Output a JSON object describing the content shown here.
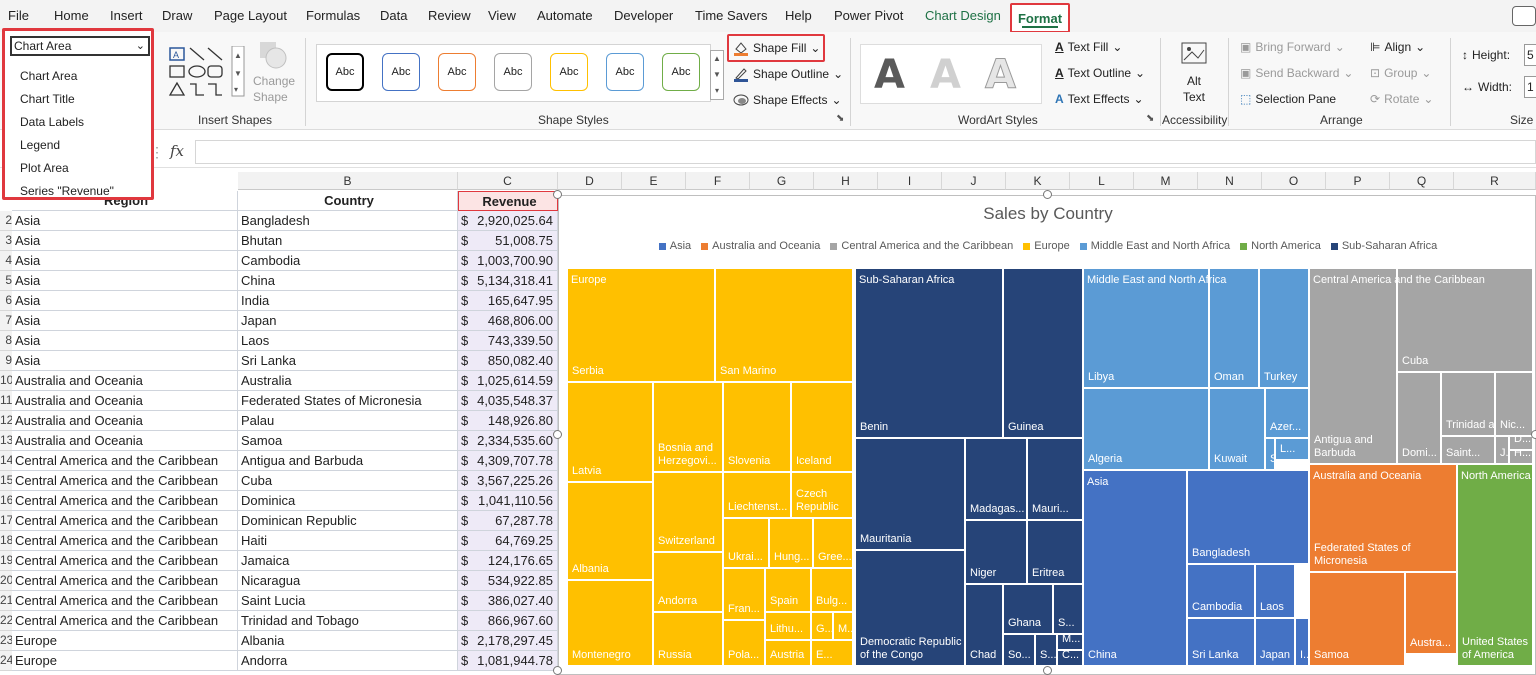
{
  "menu": {
    "tabs": [
      "File",
      "Home",
      "Insert",
      "Draw",
      "Page Layout",
      "Formulas",
      "Data",
      "Review",
      "View",
      "Automate",
      "Developer",
      "Time Savers",
      "Help",
      "Power Pivot",
      "Chart Design"
    ],
    "active_tab": "Format"
  },
  "ribbon": {
    "selection": {
      "current": "Chart Area",
      "options": [
        "Chart Area",
        "Chart Title",
        "Data Labels",
        "Legend",
        "Plot Area",
        "Series \"Revenue\""
      ]
    },
    "insert_shapes": {
      "change_shape": "Change",
      "change_shape2": "Shape",
      "label": "Insert Shapes"
    },
    "shape_styles": {
      "swatch": "Abc",
      "label": "Shape Styles",
      "colors": [
        "#000000",
        "#4472c4",
        "#ed7d31",
        "#a5a5a5",
        "#ffc000",
        "#5b9bd5",
        "#70ad47"
      ]
    },
    "shape_fill": "Shape Fill",
    "shape_outline": "Shape Outline",
    "shape_effects": "Shape Effects",
    "wordart": {
      "text_fill": "Text Fill",
      "text_outline": "Text Outline",
      "text_effects": "Text Effects",
      "label": "WordArt Styles",
      "letter": "A"
    },
    "accessibility": {
      "alt1": "Alt",
      "alt2": "Text",
      "label": "Accessibility"
    },
    "arrange": {
      "bring_forward": "Bring Forward",
      "send_backward": "Send Backward",
      "selection_pane": "Selection Pane",
      "align": "Align",
      "group": "Group",
      "rotate": "Rotate",
      "label": "Arrange"
    },
    "size": {
      "height": "Height:",
      "width": "Width:",
      "height_val": "5",
      "width_val": "1",
      "label": "Size"
    }
  },
  "formula_bar": {
    "fx": "fx"
  },
  "sheet": {
    "columns": [
      "B",
      "C",
      "D",
      "E",
      "F",
      "G",
      "H",
      "I",
      "J",
      "K",
      "L",
      "M",
      "N",
      "O",
      "P",
      "Q",
      "R"
    ],
    "headers": {
      "region": "Region",
      "country": "Country",
      "revenue": "Revenue"
    },
    "rows": [
      {
        "n": "2",
        "region": "Asia",
        "country": "Bangladesh",
        "revenue": "2,920,025.64"
      },
      {
        "n": "3",
        "region": "Asia",
        "country": "Bhutan",
        "revenue": "51,008.75"
      },
      {
        "n": "4",
        "region": "Asia",
        "country": "Cambodia",
        "revenue": "1,003,700.90"
      },
      {
        "n": "5",
        "region": "Asia",
        "country": "China",
        "revenue": "5,134,318.41"
      },
      {
        "n": "6",
        "region": "Asia",
        "country": "India",
        "revenue": "165,647.95"
      },
      {
        "n": "7",
        "region": "Asia",
        "country": "Japan",
        "revenue": "468,806.00"
      },
      {
        "n": "8",
        "region": "Asia",
        "country": "Laos",
        "revenue": "743,339.50"
      },
      {
        "n": "9",
        "region": "Asia",
        "country": "Sri Lanka",
        "revenue": "850,082.40"
      },
      {
        "n": "10",
        "region": "Australia and Oceania",
        "country": "Australia",
        "revenue": "1,025,614.59"
      },
      {
        "n": "11",
        "region": "Australia and Oceania",
        "country": "Federated States of Micronesia",
        "revenue": "4,035,548.37"
      },
      {
        "n": "12",
        "region": "Australia and Oceania",
        "country": "Palau",
        "revenue": "148,926.80"
      },
      {
        "n": "13",
        "region": "Australia and Oceania",
        "country": "Samoa",
        "revenue": "2,334,535.60"
      },
      {
        "n": "14",
        "region": "Central America and the Caribbean",
        "country": "Antigua and Barbuda",
        "revenue": "4,309,707.78"
      },
      {
        "n": "15",
        "region": "Central America and the Caribbean",
        "country": "Cuba",
        "revenue": "3,567,225.26"
      },
      {
        "n": "16",
        "region": "Central America and the Caribbean",
        "country": "Dominica",
        "revenue": "1,041,110.56"
      },
      {
        "n": "17",
        "region": "Central America and the Caribbean",
        "country": "Dominican Republic",
        "revenue": "67,287.78"
      },
      {
        "n": "18",
        "region": "Central America and the Caribbean",
        "country": "Haiti",
        "revenue": "64,769.25"
      },
      {
        "n": "19",
        "region": "Central America and the Caribbean",
        "country": "Jamaica",
        "revenue": "124,176.65"
      },
      {
        "n": "20",
        "region": "Central America and the Caribbean",
        "country": "Nicaragua",
        "revenue": "534,922.85"
      },
      {
        "n": "21",
        "region": "Central America and the Caribbean",
        "country": "Saint Lucia",
        "revenue": "386,027.40"
      },
      {
        "n": "22",
        "region": "Central America and the Caribbean",
        "country": "Trinidad and Tobago",
        "revenue": "866,967.60"
      },
      {
        "n": "23",
        "region": "Europe",
        "country": "Albania",
        "revenue": "2,178,297.45"
      },
      {
        "n": "24",
        "region": "Europe",
        "country": "Andorra",
        "revenue": "1,081,944.78"
      }
    ]
  },
  "chart": {
    "title": "Sales by Country",
    "legend": [
      {
        "name": "Asia",
        "color": "#4472c4"
      },
      {
        "name": "Australia and Oceania",
        "color": "#ed7d31"
      },
      {
        "name": "Central America and the Caribbean",
        "color": "#a5a5a5"
      },
      {
        "name": "Europe",
        "color": "#ffc000"
      },
      {
        "name": "Middle East and North Africa",
        "color": "#5b9bd5"
      },
      {
        "name": "North America",
        "color": "#70ad47"
      },
      {
        "name": "Sub-Saharan Africa",
        "color": "#264478"
      }
    ]
  },
  "chart_data": {
    "type": "treemap",
    "title": "Sales by Country",
    "groups": [
      {
        "name": "Europe",
        "labels": [
          "Europe",
          "Serbia",
          "San Marino",
          "Latvia",
          "Bosnia and Herzegovi...",
          "Slovenia",
          "Iceland",
          "Liechtenst...",
          "Czech Republic",
          "Switzerland",
          "Ukrai...",
          "Hung...",
          "Gree...",
          "Albania",
          "Andorra",
          "Fran...",
          "Spain",
          "Bulg...",
          "Lithu...",
          "G...",
          "M...",
          "Montenegro",
          "Russia",
          "Pola...",
          "Austria",
          "E..."
        ]
      },
      {
        "name": "Sub-Saharan Africa",
        "labels": [
          "Sub-Saharan Africa",
          "Benin",
          "Guinea",
          "Madagas...",
          "Mauri...",
          "Mauritania",
          "Niger",
          "Eritrea",
          "Ghana",
          "S...",
          "Chad",
          "So...",
          "S...",
          "M...",
          "C...",
          "Democratic Republic of the Congo"
        ]
      },
      {
        "name": "Middle East and North Africa",
        "labels": [
          "Middle East and North Africa",
          "Libya",
          "Oman",
          "Turkey",
          "Azer...",
          "L...",
          "S...",
          "Algeria",
          "Kuwait"
        ]
      },
      {
        "name": "Asia",
        "labels": [
          "Asia",
          "Bangladesh",
          "Cambodia",
          "Laos",
          "I...",
          "China",
          "Sri Lanka",
          "Japan"
        ]
      },
      {
        "name": "Central America and the Caribbean",
        "labels": [
          "Central America and the Caribbean",
          "Cuba",
          "Trinidad and Tobago",
          "Nic...",
          "Saint...",
          "J...",
          "D...",
          "H...",
          "Antigua and Barbuda",
          "Domi..."
        ]
      },
      {
        "name": "Australia and Oceania",
        "labels": [
          "Australia and Oceania",
          "Federated States of Micronesia",
          "Samoa",
          "Austra..."
        ]
      },
      {
        "name": "North America",
        "labels": [
          "North America",
          "United States of America"
        ]
      }
    ]
  }
}
